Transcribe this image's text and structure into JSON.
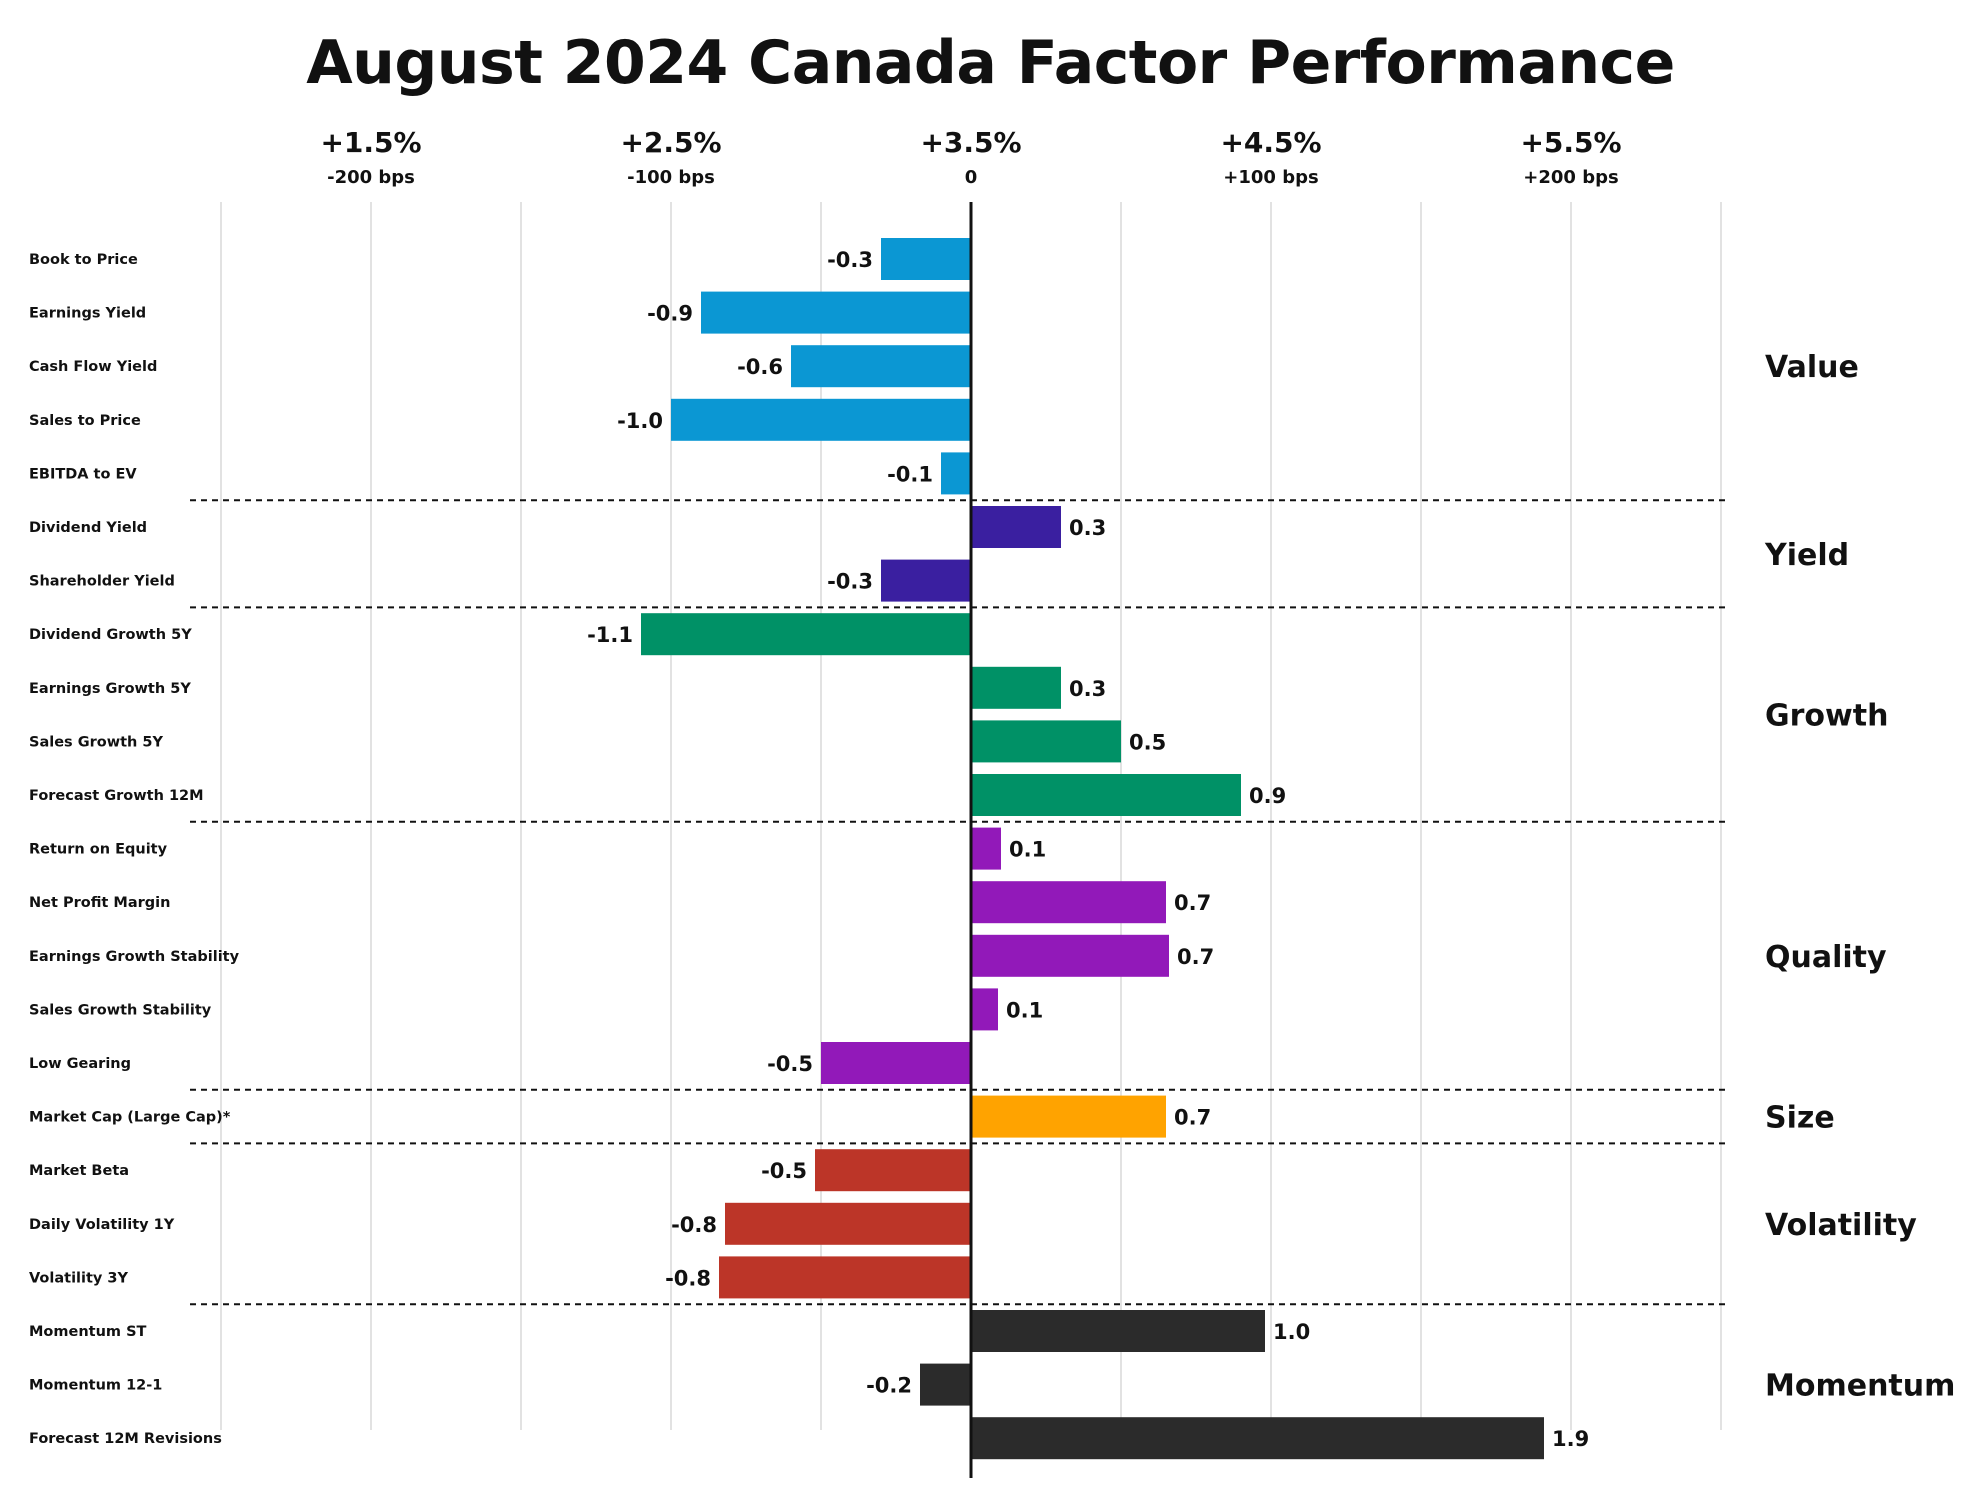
{
  "chart_data": {
    "type": "bar",
    "orientation": "horizontal",
    "title": "August 2024 Canada Factor Performance",
    "xlim": [
      -2.5,
      2.5
    ],
    "grid": true,
    "x_ticks": [
      {
        "value": -2,
        "label_top": "+1.5%",
        "label_bottom": "-200 bps"
      },
      {
        "value": -1,
        "label_top": "+2.5%",
        "label_bottom": "-100 bps"
      },
      {
        "value": 0,
        "label_top": "+3.5%",
        "label_bottom": "0"
      },
      {
        "value": 1,
        "label_top": "+4.5%",
        "label_bottom": "+100 bps"
      },
      {
        "value": 2,
        "label_top": "+5.5%",
        "label_bottom": "+200 bps"
      }
    ],
    "groups": [
      {
        "name": "Value",
        "color": "#0b97d3",
        "factors": [
          {
            "name": "Book to Price",
            "value": -0.3,
            "label": "-0.3"
          },
          {
            "name": "Earnings Yield",
            "value": -0.9,
            "label": "-0.9"
          },
          {
            "name": "Cash Flow Yield",
            "value": -0.6,
            "label": "-0.6"
          },
          {
            "name": "Sales to Price",
            "value": -1.0,
            "label": "-1.0"
          },
          {
            "name": "EBITDA to EV",
            "value": -0.1,
            "label": "-0.1"
          }
        ]
      },
      {
        "name": "Yield",
        "color": "#3a1fa0",
        "factors": [
          {
            "name": "Dividend Yield",
            "value": 0.3,
            "label": "0.3"
          },
          {
            "name": "Shareholder Yield",
            "value": -0.3,
            "label": "-0.3"
          }
        ]
      },
      {
        "name": "Growth",
        "color": "#009166",
        "factors": [
          {
            "name": "Dividend Growth 5Y",
            "value": -1.1,
            "label": "-1.1"
          },
          {
            "name": "Earnings Growth 5Y",
            "value": 0.3,
            "label": "0.3"
          },
          {
            "name": "Sales Growth 5Y",
            "value": 0.5,
            "label": "0.5"
          },
          {
            "name": "Forecast Growth 12M",
            "value": 0.9,
            "label": "0.9"
          }
        ]
      },
      {
        "name": "Quality",
        "color": "#9219b9",
        "factors": [
          {
            "name": "Return on Equity",
            "value": 0.1,
            "label": "0.1"
          },
          {
            "name": "Net Profit Margin",
            "value": 0.65,
            "label": "0.7"
          },
          {
            "name": "Earnings Growth Stability",
            "value": 0.66,
            "label": "0.7"
          },
          {
            "name": "Sales Growth Stability",
            "value": 0.09,
            "label": "0.1"
          },
          {
            "name": "Low Gearing",
            "value": -0.5,
            "label": "-0.5"
          }
        ]
      },
      {
        "name": "Size",
        "color": "#ffa300",
        "factors": [
          {
            "name": "Market Cap (Large Cap)*",
            "value": 0.65,
            "label": "0.7"
          }
        ]
      },
      {
        "name": "Volatility",
        "color": "#bc3528",
        "factors": [
          {
            "name": "Market Beta",
            "value": -0.52,
            "label": "-0.5"
          },
          {
            "name": "Daily Volatility 1Y",
            "value": -0.82,
            "label": "-0.8"
          },
          {
            "name": "Volatility 3Y",
            "value": -0.84,
            "label": "-0.8"
          }
        ]
      },
      {
        "name": "Momentum",
        "color": "#2b2b2b",
        "factors": [
          {
            "name": "Momentum ST",
            "value": 0.98,
            "label": "1.0"
          },
          {
            "name": "Momentum 12-1",
            "value": -0.17,
            "label": "-0.2"
          },
          {
            "name": "Forecast 12M Revisions",
            "value": 1.91,
            "label": "1.9"
          }
        ]
      }
    ]
  }
}
